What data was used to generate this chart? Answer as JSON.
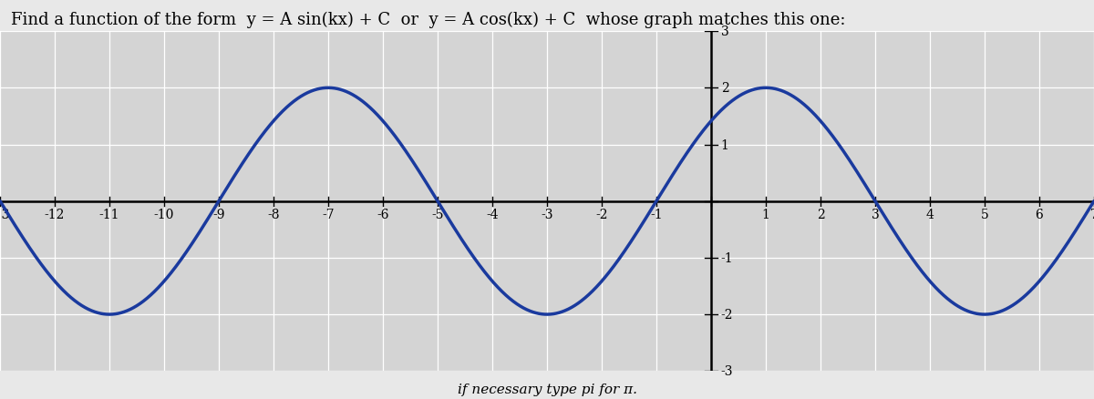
{
  "title_parts": [
    "Find a function of the form  ",
    "y",
    " = ",
    "A",
    " sin(",
    "k",
    "x",
    ") + ",
    "C",
    "  or  ",
    "y",
    " = ",
    "A",
    " cos(",
    "k",
    "x",
    ") + ",
    "C",
    "  whose graph matches this one:"
  ],
  "title_plain": "Find a function of the form  y = A sin(kx) + C  or  y = A cos(kx) + C  whose graph matches this one:",
  "title_fontsize": 13,
  "A": 2,
  "k_num": 1,
  "k_den": 4,
  "phase_shift": 2,
  "C": 0,
  "func": "cos",
  "xmin": -13,
  "xmax": 7,
  "ymin": -3,
  "ymax": 3,
  "xticks_major": 1,
  "yticks_major": 1,
  "curve_color": "#1a3a9e",
  "curve_linewidth": 2.5,
  "background_color": "#d4d4d4",
  "grid_color": "#ffffff",
  "grid_linewidth": 0.9,
  "axis_color": "#000000",
  "tick_label_fontsize": 10,
  "subtitle": "if necessary type pi for π.",
  "subtitle_fontsize": 11,
  "fig_bg": "#e8e8e8"
}
